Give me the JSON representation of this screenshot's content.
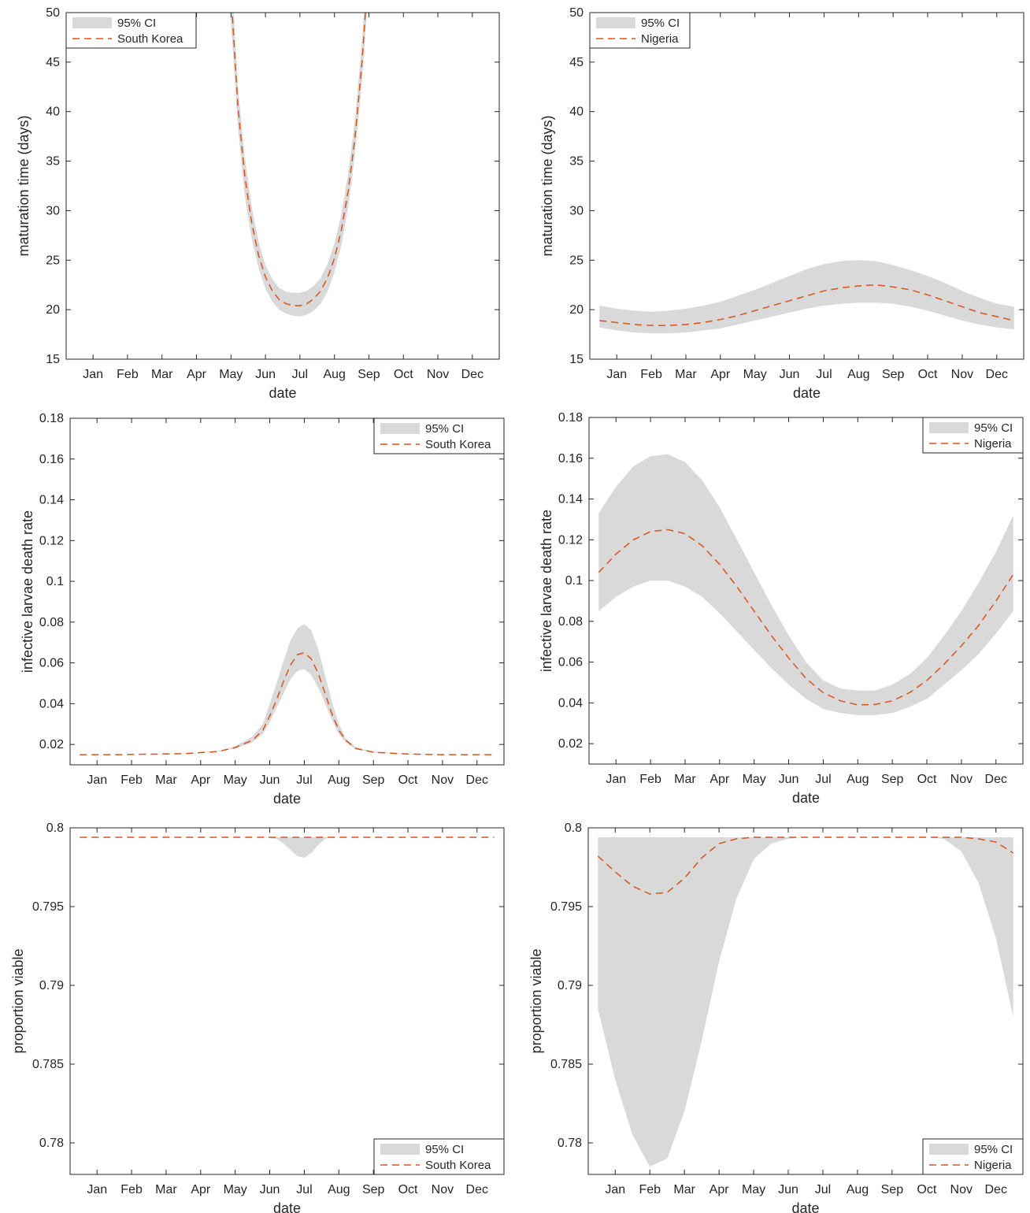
{
  "months": [
    "Jan",
    "Feb",
    "Mar",
    "Apr",
    "May",
    "Jun",
    "Jul",
    "Aug",
    "Sep",
    "Oct",
    "Nov",
    "Dec"
  ],
  "colors": {
    "ci_fill": "#d9d9d9",
    "line": "#d95319",
    "axis": "#262626",
    "legend_border": "#262626"
  },
  "chart_data": [
    {
      "id": "maturation-south-korea",
      "type": "line",
      "xlabel": "date",
      "ylabel": "maturation time (days)",
      "ylim": [
        15,
        50
      ],
      "yticks": [
        15,
        20,
        25,
        30,
        35,
        40,
        45,
        50
      ],
      "ytick_labels": [
        "15",
        "20",
        "25",
        "30",
        "35",
        "40",
        "45",
        "50"
      ],
      "legend": {
        "position": "top-left",
        "entries": [
          "95% CI",
          "South Korea"
        ]
      },
      "x": [
        5.0,
        5.2,
        5.4,
        5.6,
        5.8,
        6.0,
        6.2,
        6.4,
        6.6,
        6.8,
        7.0,
        7.2,
        7.4,
        7.6,
        7.8,
        8.0,
        8.2,
        8.4,
        8.6,
        8.8,
        9.0
      ],
      "series": [
        {
          "name": "South Korea",
          "values": [
            52,
            40.5,
            33.5,
            28.8,
            25.5,
            23.3,
            21.9,
            21.0,
            20.6,
            20.4,
            20.4,
            20.6,
            21.1,
            21.9,
            23.2,
            25.2,
            28.0,
            32.0,
            37.5,
            45.0,
            55.0
          ]
        }
      ],
      "ci_lower": [
        49,
        38.5,
        31.5,
        27.2,
        24.2,
        22.1,
        20.8,
        20.0,
        19.6,
        19.4,
        19.3,
        19.5,
        19.9,
        20.6,
        21.8,
        23.8,
        26.5,
        30.3,
        35.8,
        43.0,
        53.0
      ],
      "ci_upper": [
        55,
        42.5,
        35.5,
        30.4,
        26.9,
        24.5,
        23.1,
        22.2,
        21.8,
        21.7,
        21.7,
        21.9,
        22.4,
        23.2,
        24.6,
        26.7,
        29.6,
        33.8,
        39.4,
        47.2,
        57.5
      ]
    },
    {
      "id": "maturation-nigeria",
      "type": "line",
      "xlabel": "date",
      "ylabel": "maturation time (days)",
      "ylim": [
        15,
        50
      ],
      "yticks": [
        15,
        20,
        25,
        30,
        35,
        40,
        45,
        50
      ],
      "ytick_labels": [
        "15",
        "20",
        "25",
        "30",
        "35",
        "40",
        "45",
        "50"
      ],
      "legend": {
        "position": "top-left",
        "entries": [
          "95% CI",
          "Nigeria"
        ]
      },
      "x": [
        0.5,
        1.0,
        1.5,
        2.0,
        2.5,
        3.0,
        3.5,
        4.0,
        4.5,
        5.0,
        5.5,
        6.0,
        6.5,
        7.0,
        7.5,
        8.0,
        8.5,
        9.0,
        9.5,
        10.0,
        10.5,
        11.0,
        11.5,
        12.0,
        12.5
      ],
      "series": [
        {
          "name": "Nigeria",
          "values": [
            18.9,
            18.7,
            18.5,
            18.4,
            18.4,
            18.5,
            18.7,
            19.0,
            19.4,
            19.9,
            20.4,
            20.9,
            21.4,
            21.9,
            22.2,
            22.4,
            22.5,
            22.3,
            22.0,
            21.5,
            20.9,
            20.3,
            19.7,
            19.3,
            18.9
          ]
        }
      ],
      "ci_lower": [
        18.2,
        17.9,
        17.7,
        17.6,
        17.6,
        17.7,
        17.9,
        18.1,
        18.5,
        18.9,
        19.3,
        19.7,
        20.1,
        20.4,
        20.6,
        20.7,
        20.7,
        20.6,
        20.3,
        19.9,
        19.4,
        18.9,
        18.5,
        18.2,
        18.0
      ],
      "ci_upper": [
        20.4,
        20.1,
        19.9,
        19.8,
        19.9,
        20.1,
        20.4,
        20.8,
        21.4,
        22.0,
        22.7,
        23.4,
        24.1,
        24.6,
        24.9,
        25.0,
        24.9,
        24.5,
        24.0,
        23.4,
        22.7,
        21.9,
        21.2,
        20.6,
        20.3
      ]
    },
    {
      "id": "death-rate-south-korea",
      "type": "line",
      "xlabel": "date",
      "ylabel": "infective larvae death rate",
      "ylim": [
        0.01,
        0.18
      ],
      "yticks": [
        0.02,
        0.04,
        0.06,
        0.08,
        0.1,
        0.12,
        0.14,
        0.16,
        0.18
      ],
      "ytick_labels": [
        "0.02",
        "0.04",
        "0.06",
        "0.08",
        "0.1",
        "0.12",
        "0.14",
        "0.16",
        "0.18"
      ],
      "legend": {
        "position": "top-right",
        "entries": [
          "95% CI",
          "South Korea"
        ]
      },
      "x": [
        0.5,
        1.5,
        2.5,
        3.5,
        4.5,
        5.0,
        5.5,
        5.8,
        6.0,
        6.2,
        6.4,
        6.6,
        6.8,
        7.0,
        7.2,
        7.4,
        7.6,
        7.8,
        8.0,
        8.2,
        8.5,
        9.0,
        10.0,
        11.0,
        12.5
      ],
      "series": [
        {
          "name": "South Korea",
          "values": [
            0.015,
            0.015,
            0.0152,
            0.0155,
            0.0165,
            0.0185,
            0.022,
            0.027,
            0.034,
            0.042,
            0.051,
            0.059,
            0.064,
            0.065,
            0.062,
            0.055,
            0.045,
            0.035,
            0.027,
            0.022,
            0.018,
            0.0162,
            0.0153,
            0.015,
            0.015
          ]
        }
      ],
      "ci_lower": [
        0.015,
        0.015,
        0.0152,
        0.0155,
        0.0165,
        0.018,
        0.021,
        0.025,
        0.031,
        0.038,
        0.045,
        0.052,
        0.056,
        0.057,
        0.054,
        0.048,
        0.04,
        0.032,
        0.025,
        0.021,
        0.0175,
        0.016,
        0.0152,
        0.015,
        0.015
      ],
      "ci_upper": [
        0.015,
        0.015,
        0.0152,
        0.0156,
        0.0168,
        0.019,
        0.024,
        0.03,
        0.04,
        0.05,
        0.061,
        0.071,
        0.077,
        0.079,
        0.076,
        0.067,
        0.054,
        0.041,
        0.03,
        0.023,
        0.0185,
        0.0165,
        0.0154,
        0.015,
        0.015
      ]
    },
    {
      "id": "death-rate-nigeria",
      "type": "line",
      "xlabel": "date",
      "ylabel": "infective larvae death rate",
      "ylim": [
        0.01,
        0.18
      ],
      "yticks": [
        0.02,
        0.04,
        0.06,
        0.08,
        0.1,
        0.12,
        0.14,
        0.16,
        0.18
      ],
      "ytick_labels": [
        "0.02",
        "0.04",
        "0.06",
        "0.08",
        "0.1",
        "0.12",
        "0.14",
        "0.16",
        "0.18"
      ],
      "legend": {
        "position": "top-right",
        "entries": [
          "95% CI",
          "Nigeria"
        ]
      },
      "x": [
        0.5,
        1.0,
        1.5,
        2.0,
        2.5,
        3.0,
        3.5,
        4.0,
        4.5,
        5.0,
        5.5,
        6.0,
        6.5,
        7.0,
        7.5,
        8.0,
        8.5,
        9.0,
        9.5,
        10.0,
        10.5,
        11.0,
        11.5,
        12.0,
        12.5
      ],
      "series": [
        {
          "name": "Nigeria",
          "values": [
            0.104,
            0.113,
            0.12,
            0.124,
            0.125,
            0.123,
            0.117,
            0.108,
            0.097,
            0.085,
            0.073,
            0.062,
            0.052,
            0.045,
            0.041,
            0.039,
            0.0392,
            0.041,
            0.045,
            0.051,
            0.059,
            0.068,
            0.078,
            0.09,
            0.103
          ]
        }
      ],
      "ci_lower": [
        0.085,
        0.092,
        0.097,
        0.1,
        0.1,
        0.097,
        0.092,
        0.084,
        0.075,
        0.066,
        0.057,
        0.049,
        0.042,
        0.037,
        0.035,
        0.034,
        0.034,
        0.035,
        0.038,
        0.042,
        0.049,
        0.056,
        0.064,
        0.074,
        0.085
      ],
      "ci_upper": [
        0.133,
        0.146,
        0.156,
        0.161,
        0.162,
        0.158,
        0.149,
        0.136,
        0.12,
        0.104,
        0.088,
        0.073,
        0.06,
        0.051,
        0.047,
        0.046,
        0.046,
        0.049,
        0.054,
        0.062,
        0.073,
        0.085,
        0.099,
        0.114,
        0.132
      ]
    },
    {
      "id": "viability-south-korea",
      "type": "line",
      "xlabel": "date",
      "ylabel": "proportion viable",
      "ylim": [
        0.778,
        0.8
      ],
      "yticks": [
        0.78,
        0.785,
        0.79,
        0.795,
        0.8
      ],
      "ytick_labels": [
        "0.78",
        "0.785",
        "0.79",
        "0.795",
        "0.8"
      ],
      "legend": {
        "position": "bottom-right",
        "entries": [
          "95% CI",
          "South Korea"
        ]
      },
      "x": [
        0.5,
        5.0,
        5.5,
        5.8,
        6.0,
        6.2,
        6.4,
        6.6,
        6.8,
        7.0,
        7.2,
        7.4,
        7.6,
        7.8,
        8.0,
        8.5,
        12.5
      ],
      "series": [
        {
          "name": "South Korea",
          "values": [
            0.7994,
            0.7994,
            0.7994,
            0.7994,
            0.7994,
            0.7994,
            0.7994,
            0.7994,
            0.7994,
            0.7994,
            0.7994,
            0.7994,
            0.7994,
            0.7994,
            0.7994,
            0.7994,
            0.7994
          ]
        }
      ],
      "ci_lower": [
        0.7994,
        0.7994,
        0.7994,
        0.7994,
        0.79935,
        0.7993,
        0.799,
        0.7986,
        0.7982,
        0.7981,
        0.7984,
        0.7989,
        0.7993,
        0.7994,
        0.7994,
        0.7994,
        0.7994
      ],
      "ci_upper": [
        0.7994,
        0.7994,
        0.7994,
        0.7994,
        0.7994,
        0.7994,
        0.7994,
        0.7994,
        0.7994,
        0.7994,
        0.7994,
        0.7994,
        0.7994,
        0.7994,
        0.7994,
        0.7994,
        0.7994
      ]
    },
    {
      "id": "viability-nigeria",
      "type": "line",
      "xlabel": "date",
      "ylabel": "proportion viable",
      "ylim": [
        0.778,
        0.8
      ],
      "yticks": [
        0.78,
        0.785,
        0.79,
        0.795,
        0.8
      ],
      "ytick_labels": [
        "0.78",
        "0.785",
        "0.79",
        "0.795",
        "0.8"
      ],
      "legend": {
        "position": "bottom-right",
        "entries": [
          "95% CI",
          "Nigeria"
        ]
      },
      "x": [
        0.5,
        1.0,
        1.5,
        2.0,
        2.5,
        3.0,
        3.5,
        4.0,
        4.5,
        5.0,
        5.5,
        6.0,
        6.5,
        7.0,
        7.5,
        8.0,
        8.5,
        9.0,
        9.5,
        10.0,
        10.5,
        11.0,
        11.5,
        12.0,
        12.5
      ],
      "series": [
        {
          "name": "Nigeria",
          "values": [
            0.7982,
            0.7972,
            0.7963,
            0.7958,
            0.7959,
            0.7968,
            0.7981,
            0.799,
            0.7993,
            0.7994,
            0.7994,
            0.7994,
            0.7994,
            0.7994,
            0.7994,
            0.7994,
            0.7994,
            0.7994,
            0.7994,
            0.7994,
            0.7994,
            0.7994,
            0.7993,
            0.7991,
            0.7984
          ]
        }
      ],
      "ci_lower": [
        0.7885,
        0.784,
        0.7805,
        0.7785,
        0.779,
        0.782,
        0.7865,
        0.7915,
        0.7955,
        0.798,
        0.799,
        0.7993,
        0.7994,
        0.7994,
        0.7994,
        0.7994,
        0.7994,
        0.7994,
        0.7994,
        0.7994,
        0.7993,
        0.7985,
        0.7965,
        0.793,
        0.788
      ],
      "ci_upper": [
        0.7994,
        0.7994,
        0.7994,
        0.7994,
        0.7994,
        0.7994,
        0.7994,
        0.7994,
        0.7994,
        0.7994,
        0.7994,
        0.7994,
        0.7994,
        0.7994,
        0.7994,
        0.7994,
        0.7994,
        0.7994,
        0.7994,
        0.7994,
        0.7994,
        0.7994,
        0.7994,
        0.7994,
        0.7994
      ]
    }
  ]
}
